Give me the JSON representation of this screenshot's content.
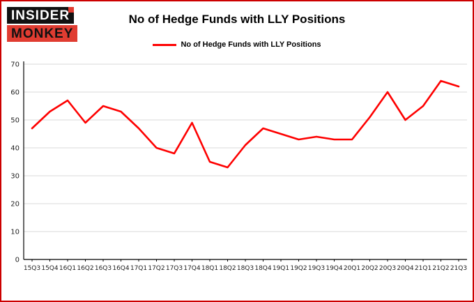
{
  "header": {
    "logo_line1": "INSIDER",
    "logo_line2": "MONKEY",
    "title": "No of Hedge Funds with LLY Positions",
    "legend_label": "No of Hedge Funds with LLY Positions"
  },
  "colors": {
    "line": "#fe0000",
    "frame_border": "#cc0000",
    "grid": "#d9d9d9",
    "axis": "#000000",
    "tick_text": "#222222",
    "logo_red": "#e03c31",
    "logo_black": "#111111"
  },
  "chart_data": {
    "type": "line",
    "title": "No of Hedge Funds with LLY Positions",
    "xlabel": "",
    "ylabel": "",
    "ylim": [
      0,
      70
    ],
    "ytick_interval": 10,
    "grid": true,
    "legend_position": "top",
    "categories": [
      "15Q3",
      "15Q4",
      "16Q1",
      "16Q2",
      "16Q3",
      "16Q4",
      "17Q1",
      "17Q2",
      "17Q3",
      "17Q4",
      "18Q1",
      "18Q2",
      "18Q3",
      "18Q4",
      "19Q1",
      "19Q2",
      "19Q3",
      "19Q4",
      "20Q1",
      "20Q2",
      "20Q3",
      "20Q4",
      "21Q1",
      "21Q2",
      "21Q3"
    ],
    "values": [
      47,
      53,
      57,
      49,
      55,
      53,
      47,
      40,
      38,
      49,
      35,
      33,
      41,
      47,
      45,
      43,
      44,
      43,
      43,
      51,
      60,
      50,
      55,
      64,
      62
    ]
  }
}
